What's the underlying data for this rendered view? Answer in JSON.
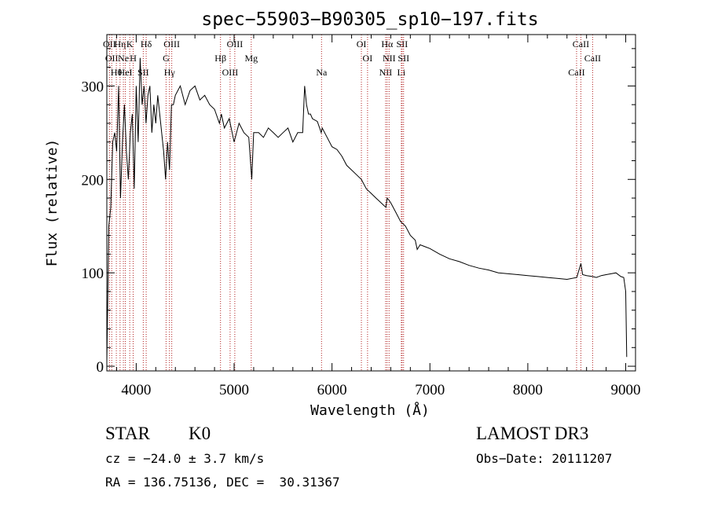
{
  "chart_data": {
    "type": "line",
    "title": "spec−55903−B90305_sp10−197.fits",
    "xlabel": "Wavelength (Å)",
    "ylabel": "Flux (relative)",
    "xlim": [
      3700,
      9100
    ],
    "ylim": [
      -5,
      355
    ],
    "x_ticks": [
      4000,
      5000,
      6000,
      7000,
      8000,
      9000
    ],
    "y_ticks": [
      0,
      100,
      200,
      300
    ],
    "series": [
      {
        "name": "flux",
        "x": [
          3700,
          3720,
          3740,
          3760,
          3780,
          3800,
          3820,
          3840,
          3860,
          3880,
          3900,
          3920,
          3940,
          3960,
          3980,
          4000,
          4020,
          4040,
          4060,
          4080,
          4100,
          4120,
          4140,
          4160,
          4180,
          4200,
          4220,
          4240,
          4260,
          4280,
          4300,
          4320,
          4340,
          4360,
          4380,
          4400,
          4450,
          4500,
          4550,
          4600,
          4650,
          4700,
          4750,
          4800,
          4850,
          4870,
          4900,
          4950,
          5000,
          5050,
          5100,
          5150,
          5180,
          5200,
          5250,
          5300,
          5350,
          5400,
          5450,
          5500,
          5550,
          5600,
          5650,
          5700,
          5720,
          5740,
          5760,
          5780,
          5800,
          5850,
          5890,
          5900,
          5950,
          6000,
          6050,
          6100,
          6150,
          6200,
          6250,
          6300,
          6350,
          6400,
          6450,
          6500,
          6550,
          6563,
          6580,
          6600,
          6650,
          6700,
          6750,
          6800,
          6850,
          6870,
          6900,
          6950,
          7000,
          7100,
          7200,
          7300,
          7400,
          7500,
          7600,
          7700,
          7800,
          7900,
          8000,
          8100,
          8200,
          8300,
          8400,
          8500,
          8542,
          8560,
          8600,
          8662,
          8700,
          8750,
          8800,
          8850,
          8900,
          8950,
          8980,
          9000,
          9010
        ],
        "y": [
          5,
          150,
          170,
          240,
          250,
          230,
          300,
          180,
          240,
          280,
          230,
          200,
          250,
          270,
          190,
          300,
          240,
          330,
          280,
          300,
          260,
          290,
          300,
          250,
          280,
          260,
          290,
          270,
          250,
          230,
          200,
          240,
          210,
          280,
          280,
          290,
          300,
          280,
          295,
          300,
          285,
          290,
          280,
          275,
          260,
          270,
          255,
          265,
          240,
          260,
          250,
          245,
          200,
          250,
          250,
          245,
          255,
          250,
          245,
          250,
          255,
          240,
          250,
          250,
          300,
          280,
          270,
          270,
          265,
          262,
          250,
          255,
          245,
          235,
          232,
          225,
          215,
          210,
          205,
          200,
          190,
          185,
          180,
          175,
          170,
          180,
          178,
          175,
          165,
          155,
          150,
          140,
          135,
          125,
          130,
          128,
          126,
          120,
          115,
          112,
          108,
          105,
          103,
          100,
          99,
          98,
          97,
          96,
          95,
          94,
          93,
          95,
          110,
          98,
          97,
          96,
          95,
          97,
          98,
          99,
          100,
          96,
          95,
          80,
          10
        ]
      }
    ],
    "line_markers": [
      {
        "wavelength": 3727,
        "label": "OII"
      },
      {
        "wavelength": 3750,
        "label": "OII"
      },
      {
        "wavelength": 3797,
        "label": "Hθ"
      },
      {
        "wavelength": 3835,
        "label": "Hη"
      },
      {
        "wavelength": 3869,
        "label": "Ne"
      },
      {
        "wavelength": 3889,
        "label": "HeI"
      },
      {
        "wavelength": 3934,
        "label": "K"
      },
      {
        "wavelength": 3969,
        "label": "H"
      },
      {
        "wavelength": 4072,
        "label": "SII"
      },
      {
        "wavelength": 4102,
        "label": "Hδ"
      },
      {
        "wavelength": 4305,
        "label": "G"
      },
      {
        "wavelength": 4340,
        "label": "Hγ"
      },
      {
        "wavelength": 4363,
        "label": "OIII"
      },
      {
        "wavelength": 4861,
        "label": "Hβ"
      },
      {
        "wavelength": 4959,
        "label": "OIII"
      },
      {
        "wavelength": 5007,
        "label": "OIII"
      },
      {
        "wavelength": 5175,
        "label": "Mg"
      },
      {
        "wavelength": 5893,
        "label": "Na"
      },
      {
        "wavelength": 6300,
        "label": "OI"
      },
      {
        "wavelength": 6363,
        "label": "OI"
      },
      {
        "wavelength": 6548,
        "label": "NII"
      },
      {
        "wavelength": 6563,
        "label": "Hα"
      },
      {
        "wavelength": 6583,
        "label": "NII"
      },
      {
        "wavelength": 6708,
        "label": "Li"
      },
      {
        "wavelength": 6716,
        "label": "SII"
      },
      {
        "wavelength": 6731,
        "label": "SII"
      },
      {
        "wavelength": 8498,
        "label": "CaII"
      },
      {
        "wavelength": 8542,
        "label": "CaII"
      },
      {
        "wavelength": 8662,
        "label": "CaII"
      }
    ]
  },
  "info": {
    "class_label": "STAR",
    "subclass": "K0",
    "survey": "LAMOST DR3",
    "cz": "cz = −24.0 ± 3.7 km/s",
    "obs_date": "Obs−Date: 20111207",
    "coords": "RA = 136.75136, DEC =  30.31367"
  }
}
